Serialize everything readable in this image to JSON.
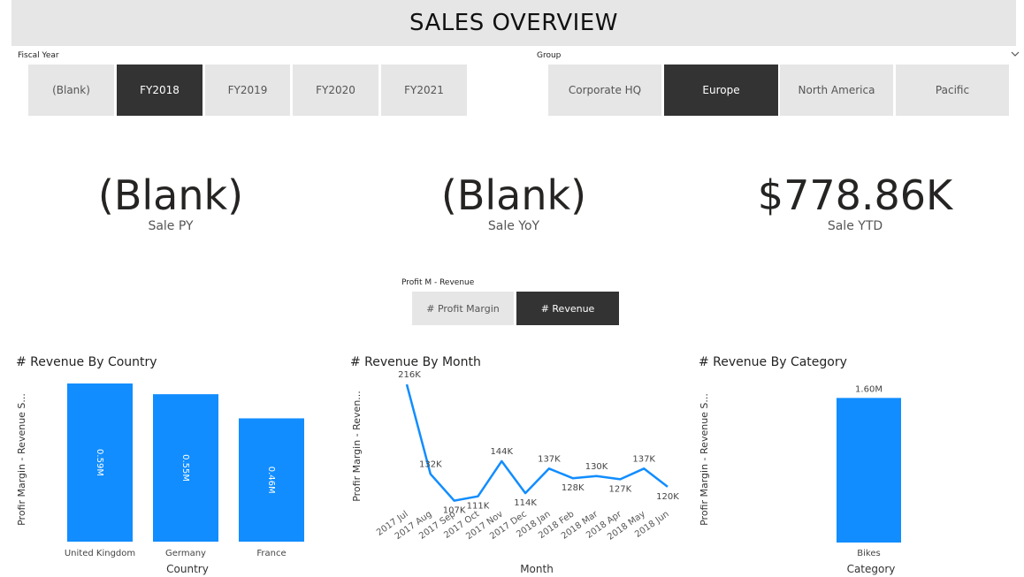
{
  "header": {
    "title": "SALES OVERVIEW"
  },
  "fiscal_slicer": {
    "title": "Fiscal Year",
    "options": [
      "(Blank)",
      "FY2018",
      "FY2019",
      "FY2020",
      "FY2021"
    ],
    "selected": "FY2018"
  },
  "group_slicer": {
    "title": "Group",
    "options": [
      "Corporate HQ",
      "Europe",
      "North America",
      "Pacific"
    ],
    "selected": "Europe",
    "chevron_icon": "chevron-down-icon"
  },
  "kpis": [
    {
      "value": "(Blank)",
      "label": "Sale PY"
    },
    {
      "value": "(Blank)",
      "label": "Sale YoY"
    },
    {
      "value": "$778.86K",
      "label": "Sale YTD"
    }
  ],
  "measure_slicer": {
    "title": "Profit M - Revenue",
    "options": [
      "# Profit Margin",
      "# Revenue"
    ],
    "selected": "# Revenue"
  },
  "colors": {
    "accent": "#118dff",
    "selected_tile": "#333333",
    "tile": "#e6e6e6",
    "header": "#e6e6e6"
  },
  "chart_data": [
    {
      "type": "bar",
      "title": "# Revenue By Country",
      "xlabel": "Country",
      "ylabel": "Profir Margin - Revenue S...",
      "categories": [
        "United Kingdom",
        "Germany",
        "France"
      ],
      "values": [
        0.59,
        0.55,
        0.46
      ],
      "data_labels": [
        "0.59M",
        "0.55M",
        "0.46M"
      ],
      "units": "M",
      "ylim": [
        0,
        0.59
      ]
    },
    {
      "type": "line",
      "title": "# Revenue By Month",
      "xlabel": "Month",
      "ylabel": "Profir Margin - Reven...",
      "categories": [
        "2017 Jul",
        "2017 Aug",
        "2017 Sep",
        "2017 Oct",
        "2017 Nov",
        "2017 Dec",
        "2018 Jan",
        "2018 Feb",
        "2018 Mar",
        "2018 Apr",
        "2018 May",
        "2018 Jun"
      ],
      "values": [
        216,
        132,
        107,
        111,
        144,
        114,
        137,
        128,
        130,
        127,
        137,
        120
      ],
      "data_labels": [
        "216K",
        "132K",
        "107K",
        "111K",
        "144K",
        "114K",
        "137K",
        "128K",
        "130K",
        "127K",
        "137K",
        "120K"
      ],
      "units": "K",
      "ylim": [
        100,
        216
      ]
    },
    {
      "type": "bar",
      "title": "# Revenue By Category",
      "xlabel": "Category",
      "ylabel": "Profir Margin - Revenue S...",
      "categories": [
        "Bikes"
      ],
      "values": [
        1.6
      ],
      "data_labels": [
        "1.60M"
      ],
      "units": "M",
      "ylim": [
        0,
        1.75
      ]
    }
  ]
}
